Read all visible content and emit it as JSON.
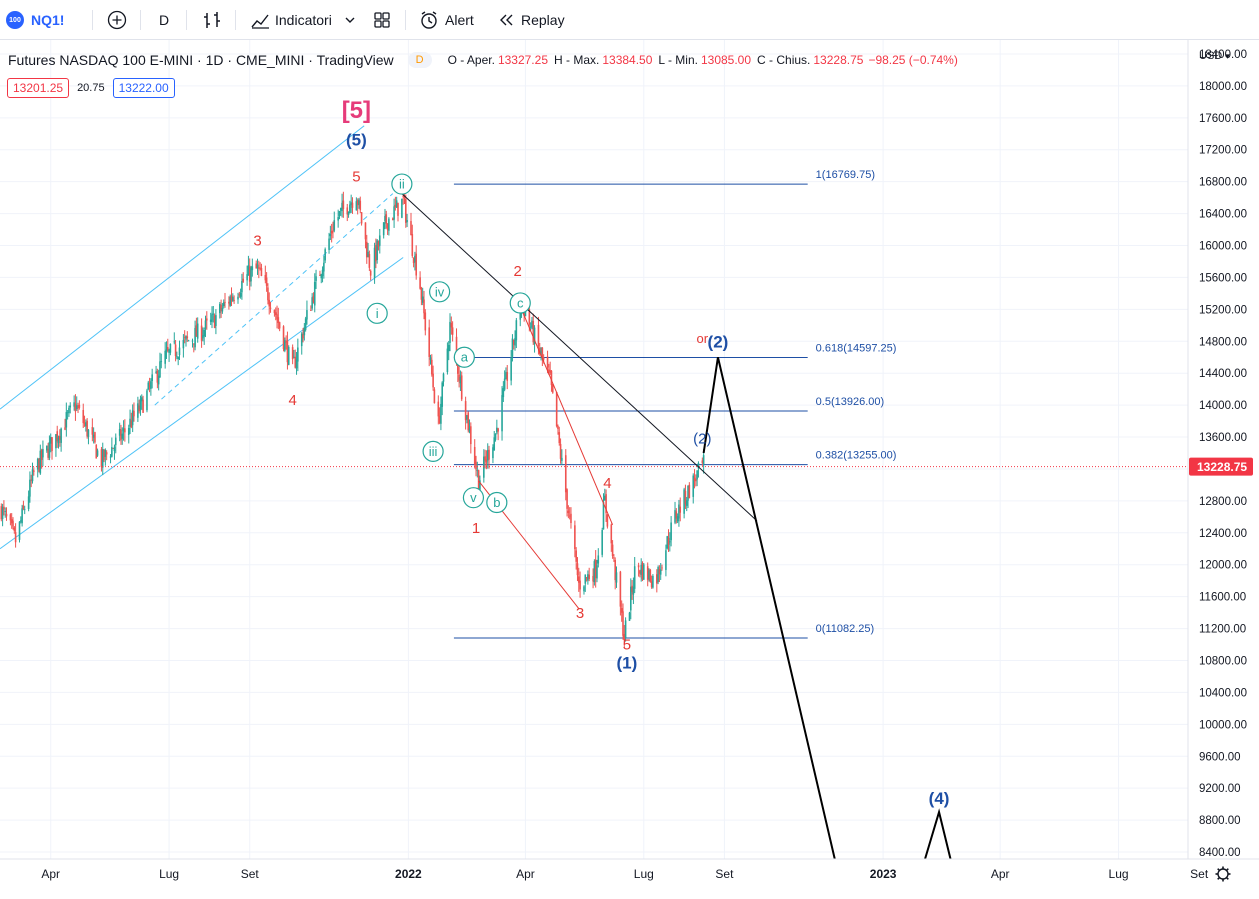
{
  "toolbar": {
    "symbol": "NQ1!",
    "logo_text": "100",
    "interval": "D",
    "indicators_label": "Indicatori",
    "alert_label": "Alert",
    "replay_label": "Replay",
    "icons": [
      "plus-circle-icon",
      "bar-style-icon",
      "indicators-icon",
      "chevron-down-icon",
      "layout-grid-icon",
      "alert-clock-icon",
      "replay-icon"
    ]
  },
  "legend": {
    "title": "Futures NASDAQ 100 E-MINI · 1D · CME_MINI · TradingView",
    "badge": "D",
    "open_label": "O - Aper.",
    "open": "13327.25",
    "high_label": "H - Max.",
    "high": "13384.50",
    "low_label": "L - Min.",
    "low": "13085.00",
    "close_label": "C - Chius.",
    "close": "13228.75",
    "change": "−98.25 (−0.74%)"
  },
  "quotes": {
    "bid": "13201.25",
    "spread": "20.75",
    "ask": "13222.00"
  },
  "price_axis": {
    "currency": "USD",
    "current_price_label": "13228.75"
  },
  "colors": {
    "up": "#26a69a",
    "down": "#ef5350",
    "bg": "#ffffff",
    "axis_text": "#131722",
    "fib": "#1e4fa5",
    "channel": "#4fc3f7",
    "wave_red": "#e53935",
    "wave_blue": "#1e4fa5",
    "wave_teal": "#26a69a",
    "wave_pink": "#e63b7a",
    "price_tag": "#f23645"
  },
  "chart_data": {
    "type": "candlestick",
    "symbol": "Futures NASDAQ 100 E-MINI",
    "interval": "1D",
    "y_axis_ticks": [
      8400,
      8800,
      9200,
      9600,
      10000,
      10400,
      10800,
      11200,
      11600,
      12000,
      12400,
      12800,
      13200,
      13600,
      14000,
      14400,
      14800,
      15200,
      15600,
      16000,
      16400,
      16800,
      17200,
      17600,
      18000,
      18400
    ],
    "y_axis_tick_labels": [
      "8400.00",
      "8800.00",
      "9200.00",
      "9600.00",
      "10000.00",
      "10400.00",
      "10800.00",
      "11200.00",
      "11600.00",
      "12000.00",
      "12400.00",
      "12800.00",
      "13200.00",
      "13600.00",
      "14000.00",
      "14400.00",
      "14800.00",
      "15200.00",
      "15600.00",
      "16000.00",
      "16400.00",
      "16800.00",
      "17200.00",
      "17600.00",
      "18000.00",
      "18400.00"
    ],
    "y_range": [
      8300,
      18550
    ],
    "x_axis_labels": [
      "Apr",
      "Lug",
      "Set",
      "2022",
      "Apr",
      "Lug",
      "Set",
      "2023",
      "Apr",
      "Lug",
      "Set"
    ],
    "x_axis_label_dates": [
      "2021-04-01",
      "2021-07-01",
      "2021-09-01",
      "2022-01-01",
      "2022-04-01",
      "2022-07-01",
      "2022-09-01",
      "2023-01-01",
      "2023-04-01",
      "2023-07-01",
      "2023-09-01"
    ],
    "x_range": [
      "2021-02-21",
      "2023-10-17"
    ],
    "price_path": [
      [
        "2021-02-22",
        12700
      ],
      [
        "2021-03-05",
        12300
      ],
      [
        "2021-03-20",
        13200
      ],
      [
        "2021-04-05",
        13600
      ],
      [
        "2021-04-20",
        14000
      ],
      [
        "2021-05-10",
        13300
      ],
      [
        "2021-05-25",
        13600
      ],
      [
        "2021-06-10",
        14000
      ],
      [
        "2021-06-28",
        14600
      ],
      [
        "2021-07-15",
        14800
      ],
      [
        "2021-08-01",
        15000
      ],
      [
        "2021-08-15",
        15300
      ],
      [
        "2021-09-01",
        15650
      ],
      [
        "2021-09-07",
        15700
      ],
      [
        "2021-09-20",
        15200
      ],
      [
        "2021-10-04",
        14450
      ],
      [
        "2021-10-20",
        15400
      ],
      [
        "2021-11-05",
        16300
      ],
      [
        "2021-11-22",
        16650
      ],
      [
        "2021-12-03",
        15700
      ],
      [
        "2021-12-15",
        16300
      ],
      [
        "2021-12-28",
        16560
      ],
      [
        "2022-01-10",
        15500
      ],
      [
        "2022-01-24",
        13750
      ],
      [
        "2022-02-02",
        15000
      ],
      [
        "2022-02-24",
        13050
      ],
      [
        "2022-03-10",
        13700
      ],
      [
        "2022-03-29",
        15300
      ],
      [
        "2022-04-20",
        14300
      ],
      [
        "2022-05-12",
        11750
      ],
      [
        "2022-05-25",
        11950
      ],
      [
        "2022-06-01",
        12800
      ],
      [
        "2022-06-16",
        11100
      ],
      [
        "2022-06-25",
        12000
      ],
      [
        "2022-07-10",
        11800
      ],
      [
        "2022-07-25",
        12600
      ],
      [
        "2022-08-10",
        13100
      ],
      [
        "2022-08-16",
        13250
      ]
    ],
    "last_close": 13228.75,
    "fibonacci": [
      {
        "level": "1",
        "price": 16769.75,
        "label": "1(16769.75)"
      },
      {
        "level": "0.618",
        "price": 14597.25,
        "label": "0.618(14597.25)"
      },
      {
        "level": "0.5",
        "price": 13926.0,
        "label": "0.5(13926.00)"
      },
      {
        "level": "0.382",
        "price": 13255.0,
        "label": "0.382(13255.00)"
      },
      {
        "level": "0",
        "price": 11082.25,
        "label": "0(11082.25)"
      }
    ],
    "projection_path": [
      [
        "2022-08-16",
        13400
      ],
      [
        "2022-08-27",
        14600
      ],
      [
        "2022-11-25",
        8300
      ]
    ],
    "projection_tail": [
      [
        "2023-02-02",
        8300
      ],
      [
        "2023-02-13",
        8900
      ],
      [
        "2023-02-22",
        8300
      ]
    ],
    "downtrend_line": [
      [
        "2021-12-27",
        16650
      ],
      [
        "2022-09-26",
        12550
      ]
    ],
    "red_wedge": {
      "upper": [
        [
          "2022-03-29",
          15200
        ],
        [
          "2022-06-07",
          12500
        ]
      ],
      "lower": [
        [
          "2022-02-24",
          13050
        ],
        [
          "2022-05-12",
          11450
        ]
      ]
    },
    "channel": {
      "upper": [
        [
          "2021-02-21",
          13950
        ],
        [
          "2021-11-28",
          17500
        ]
      ],
      "middle": [
        [
          "2021-06-20",
          14000
        ],
        [
          "2021-12-20",
          16650
        ]
      ],
      "lower": [
        [
          "2021-02-21",
          12200
        ],
        [
          "2021-12-28",
          15850
        ]
      ]
    },
    "wave_labels": [
      {
        "text": "[5]",
        "date": "2021-11-22",
        "price": 17600,
        "color": "pink",
        "size": "xl"
      },
      {
        "text": "(5)",
        "date": "2021-11-22",
        "price": 17250,
        "color": "blue",
        "size": "l"
      },
      {
        "text": "5",
        "date": "2021-11-22",
        "price": 16800,
        "color": "red",
        "size": "m"
      },
      {
        "text": "3",
        "date": "2021-09-07",
        "price": 16000,
        "color": "red",
        "size": "m"
      },
      {
        "text": "4",
        "date": "2021-10-04",
        "price": 14000,
        "color": "red",
        "size": "m"
      },
      {
        "text": "ii",
        "date": "2021-12-27",
        "price": 16770,
        "color": "teal",
        "circle": true
      },
      {
        "text": "i",
        "date": "2021-12-08",
        "price": 15150,
        "color": "teal",
        "circle": true
      },
      {
        "text": "iv",
        "date": "2022-01-25",
        "price": 15420,
        "color": "teal",
        "circle": true
      },
      {
        "text": "iii",
        "date": "2022-01-20",
        "price": 13420,
        "color": "teal",
        "circle": true
      },
      {
        "text": "a",
        "date": "2022-02-13",
        "price": 14600,
        "color": "teal",
        "circle": true
      },
      {
        "text": "v",
        "date": "2022-02-20",
        "price": 12840,
        "color": "teal",
        "circle": true
      },
      {
        "text": "b",
        "date": "2022-03-10",
        "price": 12780,
        "color": "teal",
        "circle": true
      },
      {
        "text": "c",
        "date": "2022-03-28",
        "price": 15280,
        "color": "teal",
        "circle": true
      },
      {
        "text": "2",
        "date": "2022-03-26",
        "price": 15620,
        "color": "red",
        "size": "m"
      },
      {
        "text": "1",
        "date": "2022-02-22",
        "price": 12400,
        "color": "red",
        "size": "m"
      },
      {
        "text": "4",
        "date": "2022-06-03",
        "price": 12960,
        "color": "red",
        "size": "m"
      },
      {
        "text": "3",
        "date": "2022-05-13",
        "price": 11330,
        "color": "red",
        "size": "m"
      },
      {
        "text": "5",
        "date": "2022-06-18",
        "price": 10940,
        "color": "red",
        "size": "m"
      },
      {
        "text": "(1)",
        "date": "2022-06-18",
        "price": 10700,
        "color": "blue",
        "size": "l"
      },
      {
        "text": "(2)",
        "date": "2022-08-15",
        "price": 13520,
        "color": "blue",
        "size": "m"
      },
      {
        "text": "or",
        "date": "2022-08-15",
        "price": 14780,
        "color": "red",
        "size": "s"
      },
      {
        "text": "(2)",
        "date": "2022-08-27",
        "price": 14720,
        "color": "blue",
        "size": "l"
      },
      {
        "text": "(4)",
        "date": "2023-02-13",
        "price": 9000,
        "color": "blue",
        "size": "l"
      }
    ]
  }
}
